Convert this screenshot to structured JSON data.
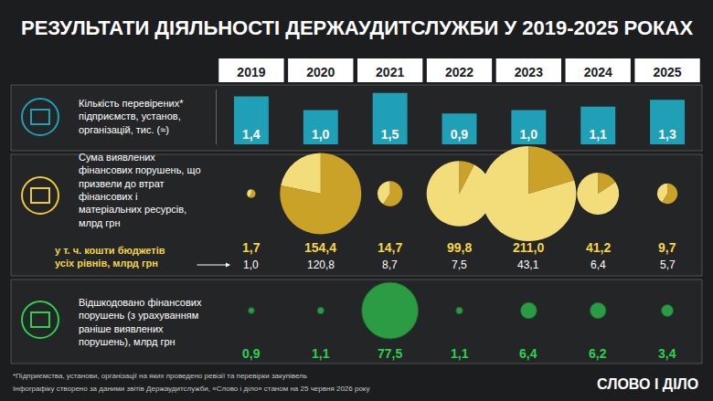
{
  "title": "РЕЗУЛЬТАТИ ДІЯЛЬНОСТІ ДЕРЖАУДИТСЛУЖБИ У 2019-2025 РОКАХ",
  "chart_data": [
    {
      "type": "bar",
      "title": "Кількість перевірених* підприємств, установ, організацій, тис. (≈)",
      "categories": [
        "2019",
        "2020",
        "2021",
        "2022",
        "2023",
        "2024",
        "2025"
      ],
      "values": [
        1.4,
        1.0,
        1.5,
        0.9,
        1.0,
        1.1,
        1.3
      ],
      "value_labels": [
        "1,4",
        "1,0",
        "1,5",
        "0,9",
        "1,0",
        "1,1",
        "1,3"
      ],
      "color": "#1fa0b6",
      "ylim": [
        0,
        1.6
      ],
      "data_labels": true,
      "tick_labels": "x"
    },
    {
      "type": "bubble",
      "categories": [
        "2019",
        "2020",
        "2021",
        "2022",
        "2023",
        "2024",
        "2025"
      ],
      "series": [
        {
          "name": "Сума виявлених фінансових порушень, що призвели до втрат фінансових і матеріальних ресурсів, млрд грн",
          "color": "#f3dd7a",
          "values": [
            1.7,
            154.4,
            14.7,
            99.8,
            211.0,
            41.2,
            9.7
          ],
          "value_labels": [
            "1,7",
            "154,4",
            "14,7",
            "99,8",
            "211,0",
            "41,2",
            "9,7"
          ]
        },
        {
          "name": "у т. ч. кошти бюджетів усіх рівнів, млрд грн",
          "color": "#c9a227",
          "values": [
            1.0,
            120.8,
            8.7,
            7.5,
            43.1,
            6.4,
            5.7
          ],
          "value_labels": [
            "1,0",
            "120,8",
            "8,7",
            "7,5",
            "43,1",
            "6,4",
            "5,7"
          ]
        }
      ],
      "data_labels": true,
      "tick_labels": false
    },
    {
      "type": "bubble",
      "title": "Відшкодовано фінансових порушень (з урахуванням раніше виявлених порушень), млрд грн",
      "categories": [
        "2019",
        "2020",
        "2021",
        "2022",
        "2023",
        "2024",
        "2025"
      ],
      "values": [
        0.9,
        1.1,
        77.5,
        1.1,
        6.4,
        6.2,
        3.4
      ],
      "value_labels": [
        "0,9",
        "1,1",
        "77,5",
        "1,1",
        "6,4",
        "6,2",
        "3,4"
      ],
      "color": "#2fcf4f",
      "data_labels": true,
      "tick_labels": false
    }
  ],
  "notes": [
    "*Підприємства, установи, організації на яких проведено ревізії та перевірки закупівель",
    "Інфографіку створено за даними звітів Держаудитслужби, «Слово і діло» станом на 25 червня 2026 року"
  ],
  "logo": "СЛОВО І ДІЛО"
}
